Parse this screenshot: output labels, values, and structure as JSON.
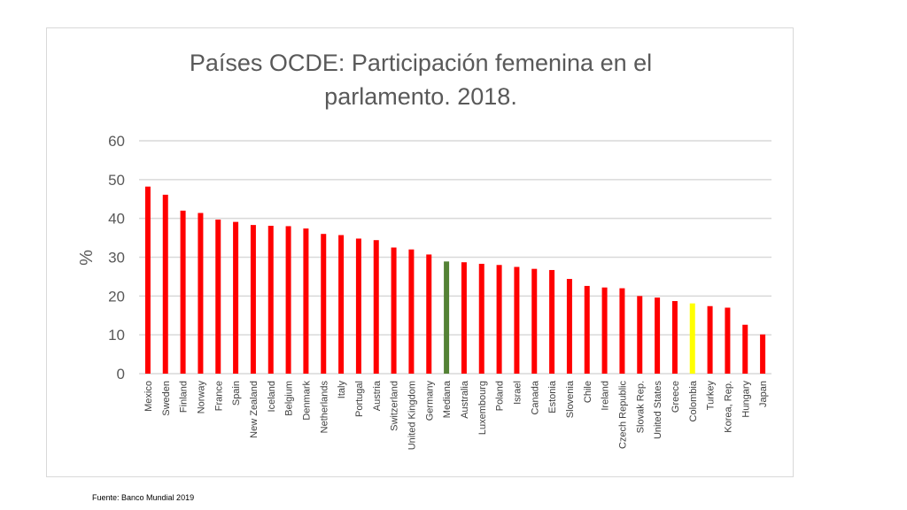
{
  "chart_data": {
    "type": "bar",
    "title": "Países OCDE: Participación femenina en el parlamento. 2018.",
    "title_lines": [
      "Países OCDE: Participación femenina en el",
      "parlamento. 2018."
    ],
    "xlabel": "",
    "ylabel": "%",
    "ylim": [
      0,
      60
    ],
    "yticks": [
      0,
      10,
      20,
      30,
      40,
      50,
      60
    ],
    "grid": true,
    "legend": "none",
    "categories": [
      "Mexico",
      "Sweden",
      "Finland",
      "Norway",
      "France",
      "Spain",
      "New Zealand",
      "Iceland",
      "Belgium",
      "Denmark",
      "Netherlands",
      "Italy",
      "Portugal",
      "Austria",
      "Switzerland",
      "United Kingdom",
      "Germany",
      "Mediana",
      "Australia",
      "Luxembourg",
      "Poland",
      "Israel",
      "Canada",
      "Estonia",
      "Slovenia",
      "Chile",
      "Ireland",
      "Czech Republic",
      "Slovak Rep.",
      "United States",
      "Greece",
      "Colombia",
      "Turkey",
      "Korea, Rep.",
      "Hungary",
      "Japan"
    ],
    "values": [
      48.2,
      46.1,
      42.0,
      41.4,
      39.7,
      39.1,
      38.3,
      38.1,
      38.0,
      37.4,
      36.0,
      35.7,
      34.8,
      34.4,
      32.5,
      32.0,
      30.7,
      28.9,
      28.7,
      28.3,
      28.0,
      27.5,
      27.0,
      26.7,
      24.4,
      22.6,
      22.2,
      22.0,
      20.0,
      19.6,
      18.7,
      18.1,
      17.4,
      17.0,
      12.6,
      10.1
    ],
    "highlights": {
      "Mediana": "#548235",
      "Colombia": "#ffff00"
    }
  },
  "colors": {
    "bar_default": "#ff0000",
    "gridline": "#d9d9d9",
    "axis_text": "#595959"
  },
  "source_note": "Fuente: Banco Mundial 2019"
}
